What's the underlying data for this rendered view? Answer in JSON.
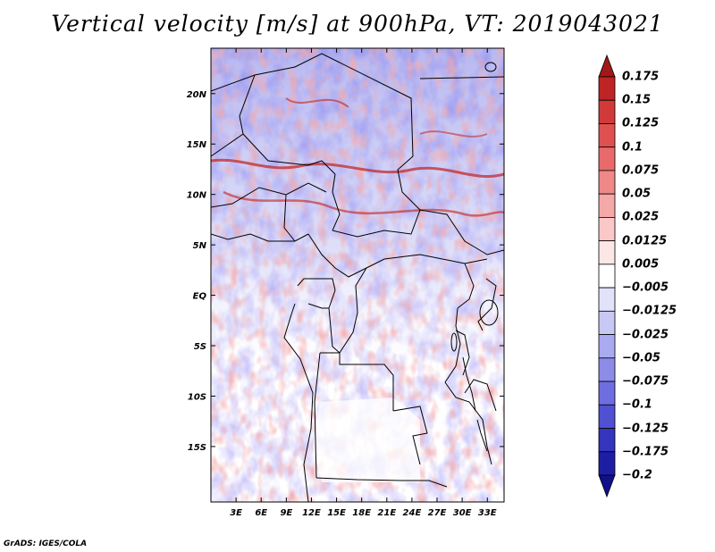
{
  "title": "Vertical velocity [m/s] at 900hPa, VT: 2019043021",
  "footer": "GrADS: IGES/COLA",
  "map": {
    "lon_range": [
      0,
      35
    ],
    "lat_range": [
      -20.5,
      24.5
    ],
    "lat_ticks": [
      {
        "label": "20N",
        "value": 20
      },
      {
        "label": "15N",
        "value": 15
      },
      {
        "label": "10N",
        "value": 10
      },
      {
        "label": "5N",
        "value": 5
      },
      {
        "label": "EQ",
        "value": 0
      },
      {
        "label": "5S",
        "value": -5
      },
      {
        "label": "10S",
        "value": -10
      },
      {
        "label": "15S",
        "value": -15
      }
    ],
    "lon_ticks": [
      {
        "label": "3E",
        "value": 3
      },
      {
        "label": "6E",
        "value": 6
      },
      {
        "label": "9E",
        "value": 9
      },
      {
        "label": "12E",
        "value": 12
      },
      {
        "label": "15E",
        "value": 15
      },
      {
        "label": "18E",
        "value": 18
      },
      {
        "label": "21E",
        "value": 21
      },
      {
        "label": "24E",
        "value": 24
      },
      {
        "label": "27E",
        "value": 27
      },
      {
        "label": "30E",
        "value": 30
      },
      {
        "label": "33E",
        "value": 33
      }
    ]
  },
  "colorbar": {
    "levels": [
      "0.175",
      "0.15",
      "0.125",
      "0.1",
      "0.075",
      "0.05",
      "0.025",
      "0.0125",
      "0.005",
      "−0.005",
      "−0.0125",
      "−0.025",
      "−0.05",
      "−0.075",
      "−0.1",
      "−0.125",
      "−0.175",
      "−0.2"
    ],
    "colors": [
      "#a01818",
      "#be2424",
      "#d23a3a",
      "#e05050",
      "#e86a6a",
      "#f08888",
      "#f5a8a8",
      "#fac8c8",
      "#fde6e6",
      "#ffffff",
      "#e2e2fa",
      "#c8c8f5",
      "#aaaaf0",
      "#8c8ce8",
      "#6e6ee0",
      "#5050d2",
      "#3434bc",
      "#1e1ea4",
      "#10108a"
    ]
  }
}
